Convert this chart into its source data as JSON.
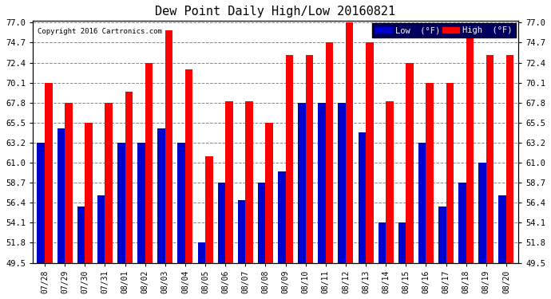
{
  "title": "Dew Point Daily High/Low 20160821",
  "copyright": "Copyright 2016 Cartronics.com",
  "dates": [
    "07/28",
    "07/29",
    "07/30",
    "07/31",
    "08/01",
    "08/02",
    "08/03",
    "08/04",
    "08/05",
    "08/06",
    "08/07",
    "08/08",
    "08/09",
    "08/10",
    "08/11",
    "08/12",
    "08/13",
    "08/14",
    "08/15",
    "08/16",
    "08/17",
    "08/18",
    "08/19",
    "08/20"
  ],
  "high": [
    70.1,
    67.8,
    65.5,
    67.8,
    69.1,
    72.4,
    76.1,
    71.6,
    61.7,
    68.0,
    68.0,
    65.5,
    73.3,
    73.3,
    74.7,
    77.0,
    74.7,
    68.0,
    72.4,
    70.1,
    70.1,
    75.2,
    73.3,
    73.3
  ],
  "low": [
    63.2,
    64.9,
    55.9,
    57.2,
    63.2,
    63.2,
    64.9,
    63.2,
    51.8,
    58.7,
    56.7,
    58.7,
    60.0,
    67.8,
    67.8,
    67.8,
    64.4,
    54.1,
    54.1,
    63.2,
    55.9,
    58.7,
    61.0,
    57.2
  ],
  "ylim_min": 49.5,
  "ylim_max": 77.0,
  "yticks": [
    49.5,
    51.8,
    54.1,
    56.4,
    58.7,
    61.0,
    63.2,
    65.5,
    67.8,
    70.1,
    72.4,
    74.7,
    77.0
  ],
  "high_color": "#ff0000",
  "low_color": "#0000cc",
  "bg_color": "#ffffff",
  "plot_bg": "#ffffff",
  "grid_color": "#888888",
  "bar_width": 0.38,
  "legend_low_label": "Low  (°F)",
  "legend_high_label": "High  (°F)"
}
